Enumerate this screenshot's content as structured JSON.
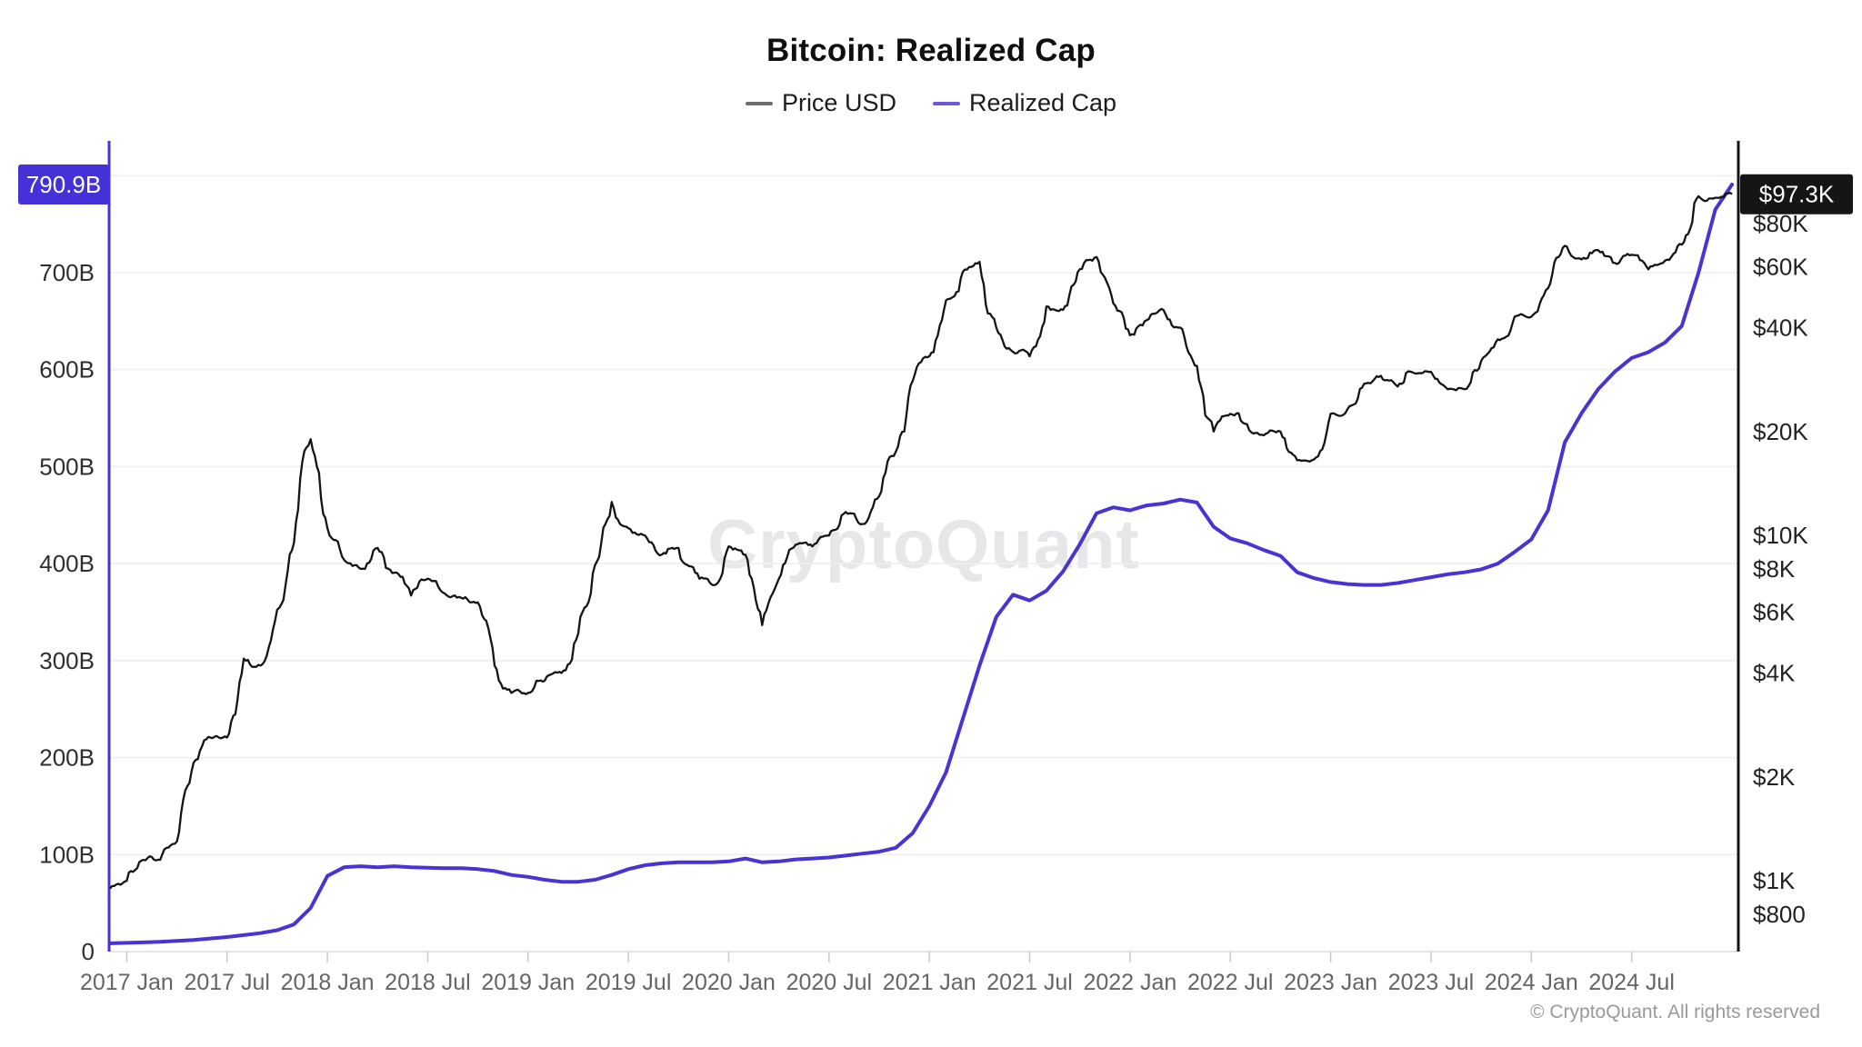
{
  "title": "Bitcoin: Realized Cap",
  "watermark": "CryptoQuant",
  "copyright": "© CryptoQuant. All rights reserved",
  "legend": [
    {
      "label": "Price USD",
      "dash_color": "#6e6e6e"
    },
    {
      "label": "Realized Cap",
      "dash_color": "#6d59d9"
    }
  ],
  "chart_data": {
    "type": "line",
    "title": "Bitcoin: Realized Cap",
    "x_unit": "month",
    "grid": "horizontal, every 100B of left axis",
    "legend_position": "top-center",
    "months": [
      "2016-12",
      "2017-01",
      "2017-02",
      "2017-03",
      "2017-04",
      "2017-05",
      "2017-06",
      "2017-07",
      "2017-08",
      "2017-09",
      "2017-10",
      "2017-11",
      "2017-12",
      "2018-01",
      "2018-02",
      "2018-03",
      "2018-04",
      "2018-05",
      "2018-06",
      "2018-07",
      "2018-08",
      "2018-09",
      "2018-10",
      "2018-11",
      "2018-12",
      "2019-01",
      "2019-02",
      "2019-03",
      "2019-04",
      "2019-05",
      "2019-06",
      "2019-07",
      "2019-08",
      "2019-09",
      "2019-10",
      "2019-11",
      "2019-12",
      "2020-01",
      "2020-02",
      "2020-03",
      "2020-04",
      "2020-05",
      "2020-06",
      "2020-07",
      "2020-08",
      "2020-09",
      "2020-10",
      "2020-11",
      "2020-12",
      "2021-01",
      "2021-02",
      "2021-03",
      "2021-04",
      "2021-05",
      "2021-06",
      "2021-07",
      "2021-08",
      "2021-09",
      "2021-10",
      "2021-11",
      "2021-12",
      "2022-01",
      "2022-02",
      "2022-03",
      "2022-04",
      "2022-05",
      "2022-06",
      "2022-07",
      "2022-08",
      "2022-09",
      "2022-10",
      "2022-11",
      "2022-12",
      "2023-01",
      "2023-02",
      "2023-03",
      "2023-04",
      "2023-05",
      "2023-06",
      "2023-07",
      "2023-08",
      "2023-09",
      "2023-10",
      "2023-11",
      "2023-12",
      "2024-01",
      "2024-02",
      "2024-03",
      "2024-04",
      "2024-05",
      "2024-06",
      "2024-07",
      "2024-08",
      "2024-09",
      "2024-10",
      "2024-11",
      "2024-12",
      "2025-01"
    ],
    "series": [
      {
        "name": "Price USD",
        "axis": "right",
        "color": "#141414",
        "line_style": "daily-volatile",
        "end_label": "$97.3K",
        "end_badge_bg": "#151515",
        "values": [
          950,
          1000,
          1150,
          1150,
          1300,
          2200,
          2600,
          2600,
          4400,
          4200,
          6100,
          9500,
          19000,
          10500,
          8500,
          8000,
          9200,
          7800,
          6700,
          7500,
          6800,
          6600,
          6400,
          4200,
          3500,
          3500,
          3800,
          4000,
          5200,
          8200,
          12500,
          10500,
          10000,
          8800,
          9200,
          7800,
          7200,
          9300,
          8800,
          5500,
          7500,
          9400,
          9300,
          10000,
          11700,
          10800,
          13000,
          17500,
          28000,
          33000,
          48000,
          58000,
          62000,
          40000,
          34000,
          33000,
          46000,
          45000,
          59000,
          64000,
          47000,
          38000,
          42000,
          45000,
          40000,
          31000,
          20000,
          22500,
          21000,
          19500,
          20000,
          16500,
          16600,
          22500,
          23200,
          27500,
          29000,
          27000,
          29500,
          29800,
          26500,
          26500,
          32000,
          37000,
          43000,
          43000,
          52000,
          69000,
          63000,
          67000,
          61500,
          65000,
          59000,
          62500,
          69500,
          96000,
          95000,
          97300
        ]
      },
      {
        "name": "Realized Cap",
        "axis": "left",
        "color": "#4634d4",
        "line_style": "smooth",
        "end_label": "790.9B",
        "end_badge_bg": "#4531d8",
        "values": [
          8.5,
          9,
          9.5,
          10,
          11,
          12,
          13.5,
          15,
          17,
          19,
          22,
          28,
          45,
          78,
          87,
          88,
          87,
          88,
          87,
          86.5,
          86,
          86,
          85,
          83,
          79,
          77,
          74,
          72,
          72,
          74,
          79,
          85,
          89,
          91,
          92,
          92,
          92,
          93,
          96,
          92,
          93,
          95,
          96,
          97,
          99,
          101,
          103,
          107,
          122,
          150,
          185,
          240,
          295,
          345,
          368,
          362,
          372,
          392,
          420,
          452,
          458,
          455,
          460,
          462,
          466,
          463,
          438,
          426,
          421,
          414,
          408,
          391,
          385,
          381,
          379,
          378,
          378,
          380,
          383,
          386,
          389,
          391,
          394,
          400,
          412,
          425,
          455,
          525,
          555,
          580,
          598,
          612,
          618,
          628,
          645,
          700,
          765,
          790.9
        ]
      }
    ],
    "left_axis": {
      "label_unit": "billions USD",
      "scale": "linear",
      "range": [
        0,
        836
      ],
      "axis_color": "#4531d8",
      "current_value_label": "790.9B",
      "ticks": [
        {
          "label": "700B",
          "value": 700
        },
        {
          "label": "600B",
          "value": 600
        },
        {
          "label": "500B",
          "value": 500
        },
        {
          "label": "400B",
          "value": 400
        },
        {
          "label": "300B",
          "value": 300
        },
        {
          "label": "200B",
          "value": 200
        },
        {
          "label": "100B",
          "value": 100
        },
        {
          "label": "0",
          "value": 0
        }
      ]
    },
    "right_axis": {
      "label_unit": "USD",
      "scale": "log",
      "range": [
        800,
        110000
      ],
      "axis_color": "#141414",
      "current_value_label": "$97.3K",
      "ticks": [
        {
          "label": "$80K",
          "value": 80000
        },
        {
          "label": "$60K",
          "value": 60000
        },
        {
          "label": "$40K",
          "value": 40000
        },
        {
          "label": "$20K",
          "value": 20000
        },
        {
          "label": "$10K",
          "value": 10000
        },
        {
          "label": "$8K",
          "value": 8000
        },
        {
          "label": "$6K",
          "value": 6000
        },
        {
          "label": "$4K",
          "value": 4000
        },
        {
          "label": "$2K",
          "value": 2000
        },
        {
          "label": "$1K",
          "value": 1000
        },
        {
          "label": "$800",
          "value": 800
        }
      ]
    },
    "x_ticks": [
      {
        "label": "2017 Jan",
        "month_index": 1
      },
      {
        "label": "2017 Jul",
        "month_index": 7
      },
      {
        "label": "2018 Jan",
        "month_index": 13
      },
      {
        "label": "2018 Jul",
        "month_index": 19
      },
      {
        "label": "2019 Jan",
        "month_index": 25
      },
      {
        "label": "2019 Jul",
        "month_index": 31
      },
      {
        "label": "2020 Jan",
        "month_index": 37
      },
      {
        "label": "2020 Jul",
        "month_index": 43
      },
      {
        "label": "2021 Jan",
        "month_index": 49
      },
      {
        "label": "2021 Jul",
        "month_index": 55
      },
      {
        "label": "2022 Jan",
        "month_index": 61
      },
      {
        "label": "2022 Jul",
        "month_index": 67
      },
      {
        "label": "2023 Jan",
        "month_index": 73
      },
      {
        "label": "2023 Jul",
        "month_index": 79
      },
      {
        "label": "2024 Jan",
        "month_index": 85
      },
      {
        "label": "2024 Jul",
        "month_index": 91
      }
    ]
  }
}
